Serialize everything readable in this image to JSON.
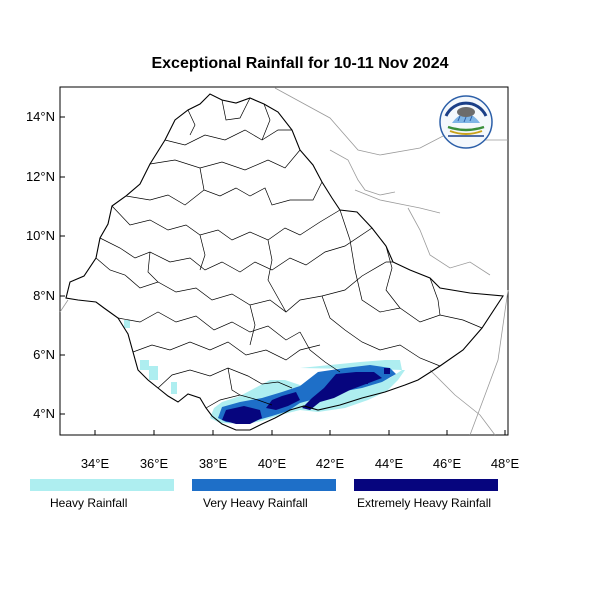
{
  "map": {
    "title": "Exceptional Rainfall for 10-11 Nov 2024",
    "x_ticks": [
      "34°E",
      "36°E",
      "38°E",
      "40°E",
      "42°E",
      "44°E",
      "46°E",
      "48°E"
    ],
    "y_ticks": [
      "14°N",
      "12°N",
      "10°N",
      "8°N",
      "6°N",
      "4°N"
    ],
    "x_range": [
      32.9,
      48.2
    ],
    "y_range": [
      3.2,
      15.0
    ],
    "logo": {
      "name": "Ethiopian Meteorology Institute"
    }
  },
  "legend": [
    {
      "label": "Heavy Rainfall",
      "color": "#aeeef0"
    },
    {
      "label": "Very Heavy Rainfall",
      "color": "#1e6fc8"
    },
    {
      "label": "Extremely Heavy Rainfall",
      "color": "#06057e"
    }
  ]
}
